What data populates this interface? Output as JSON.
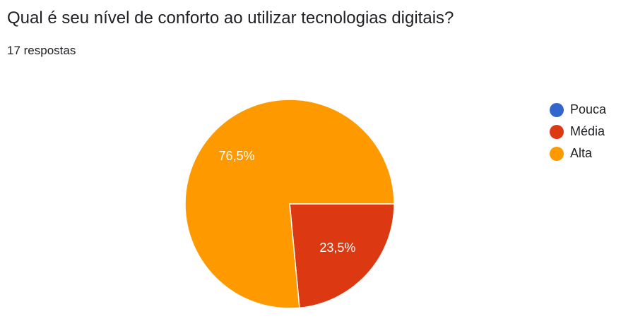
{
  "question": {
    "title": "Qual é seu nível de conforto ao utilizar tecnologias digitais?",
    "responses": "17 respostas"
  },
  "chart_data": {
    "type": "pie",
    "title": "",
    "slices": [
      {
        "name": "Pouca",
        "value": 0,
        "label": "",
        "color": "#3366cc"
      },
      {
        "name": "Média",
        "value": 23.5,
        "label": "23,5%",
        "color": "#dc3912"
      },
      {
        "name": "Alta",
        "value": 76.5,
        "label": "76,5%",
        "color": "#ff9900"
      }
    ],
    "legend_placement": "right"
  }
}
